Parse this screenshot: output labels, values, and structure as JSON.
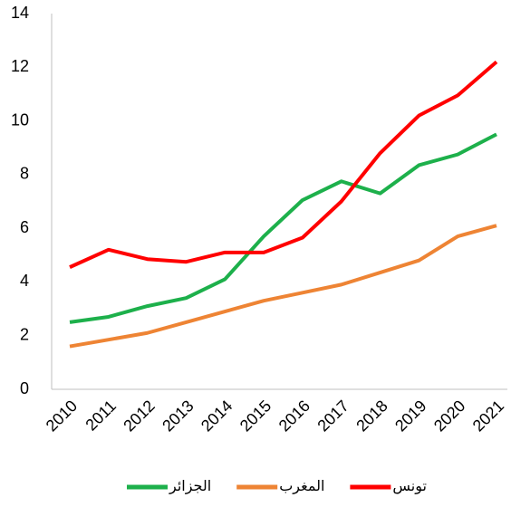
{
  "chart_data": {
    "type": "line",
    "x": [
      "2010",
      "2011",
      "2012",
      "2013",
      "2014",
      "2015",
      "2016",
      "2017",
      "2018",
      "2019",
      "2020",
      "2021"
    ],
    "series": [
      {
        "name": "الجزائر",
        "color": "#1db04b",
        "values": [
          2.5,
          2.7,
          3.1,
          3.4,
          4.1,
          5.7,
          7.05,
          7.75,
          7.3,
          8.35,
          8.75,
          9.5
        ]
      },
      {
        "name": "المغرب",
        "color": "#ee8434",
        "values": [
          1.6,
          1.85,
          2.1,
          2.5,
          2.9,
          3.3,
          3.6,
          3.9,
          4.35,
          4.8,
          5.7,
          6.1
        ]
      },
      {
        "name": "تونس",
        "color": "#ff0000",
        "values": [
          4.55,
          5.2,
          4.85,
          4.75,
          5.1,
          5.1,
          5.65,
          7.0,
          8.8,
          10.2,
          10.95,
          12.2
        ]
      }
    ],
    "ylim": [
      0,
      14
    ],
    "yticks": [
      0,
      2,
      4,
      6,
      8,
      10,
      12,
      14
    ],
    "grid": false,
    "legend": "bottom"
  }
}
